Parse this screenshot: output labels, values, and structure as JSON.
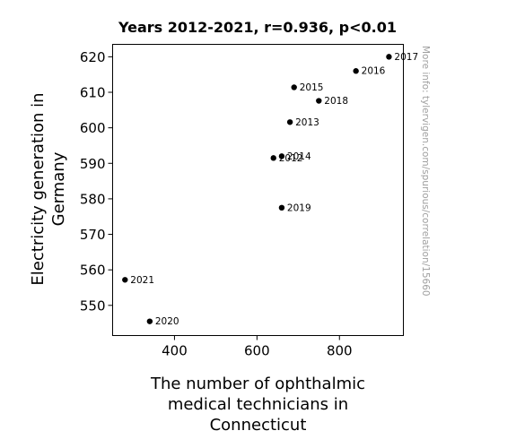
{
  "chart_data": {
    "type": "scatter",
    "title": "Years 2012-2021, r=0.936, p<0.01",
    "xlabel": [
      "The number of ophthalmic",
      "medical technicians in",
      "Connecticut"
    ],
    "ylabel": [
      "Electricity generation in",
      "Germany"
    ],
    "xlim": [
      250,
      955
    ],
    "ylim": [
      541.5,
      623.5
    ],
    "x_ticks": [
      400,
      600,
      800
    ],
    "y_ticks": [
      550,
      560,
      570,
      580,
      590,
      600,
      610,
      620
    ],
    "grid": false,
    "points": [
      {
        "label": "2012",
        "x": 640,
        "y": 591.5
      },
      {
        "label": "2013",
        "x": 680,
        "y": 601.6
      },
      {
        "label": "2014",
        "x": 660,
        "y": 592.0
      },
      {
        "label": "2015",
        "x": 690,
        "y": 611.4
      },
      {
        "label": "2016",
        "x": 840,
        "y": 616.0
      },
      {
        "label": "2017",
        "x": 920,
        "y": 620.0
      },
      {
        "label": "2018",
        "x": 750,
        "y": 607.6
      },
      {
        "label": "2019",
        "x": 660,
        "y": 577.5
      },
      {
        "label": "2020",
        "x": 340,
        "y": 545.5
      },
      {
        "label": "2021",
        "x": 280,
        "y": 557.2
      }
    ],
    "colors": {
      "points": "#000000",
      "watermark": "#a0a0a0"
    }
  },
  "watermark": "More info: tylervigen.com/spurious/correlation/15660"
}
